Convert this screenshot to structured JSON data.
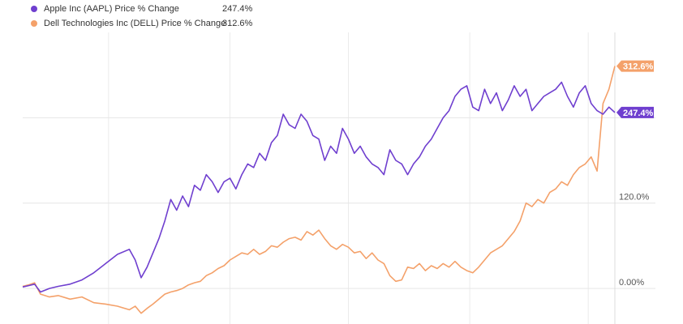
{
  "legend": {
    "aapl": {
      "label": "Apple Inc (AAPL) Price % Change",
      "value": "247.4%",
      "color": "#6f3fcf"
    },
    "dell": {
      "label": "Dell Technologies Inc (DELL) Price % Change",
      "value": "312.6%",
      "color": "#f4a16a"
    }
  },
  "chart_data": {
    "type": "line",
    "title": "",
    "xlabel": "",
    "ylabel": "",
    "ylim": [
      -50,
      360
    ],
    "yticks": [
      {
        "value": 0,
        "label": "0.00%"
      },
      {
        "value": 120,
        "label": "120.0%"
      }
    ],
    "grid": true,
    "end_labels": {
      "aapl": "247.4%",
      "dell": "312.6%"
    },
    "series": [
      {
        "name": "Apple Inc (AAPL) Price % Change",
        "key": "aapl",
        "color": "#6f3fcf",
        "x": [
          0,
          0.01,
          0.02,
          0.03,
          0.045,
          0.06,
          0.08,
          0.1,
          0.12,
          0.14,
          0.16,
          0.18,
          0.19,
          0.2,
          0.21,
          0.22,
          0.23,
          0.24,
          0.25,
          0.26,
          0.27,
          0.28,
          0.29,
          0.3,
          0.31,
          0.32,
          0.33,
          0.34,
          0.35,
          0.36,
          0.37,
          0.38,
          0.39,
          0.4,
          0.41,
          0.42,
          0.43,
          0.44,
          0.45,
          0.46,
          0.47,
          0.48,
          0.49,
          0.5,
          0.51,
          0.52,
          0.53,
          0.54,
          0.55,
          0.56,
          0.57,
          0.58,
          0.59,
          0.6,
          0.61,
          0.62,
          0.63,
          0.64,
          0.65,
          0.66,
          0.67,
          0.68,
          0.69,
          0.7,
          0.71,
          0.72,
          0.73,
          0.74,
          0.75,
          0.76,
          0.77,
          0.78,
          0.79,
          0.8,
          0.81,
          0.82,
          0.83,
          0.84,
          0.85,
          0.86,
          0.87,
          0.88,
          0.89,
          0.9,
          0.91,
          0.92,
          0.93,
          0.94,
          0.95,
          0.96,
          0.97,
          0.98,
          0.99,
          1.0
        ],
        "values": [
          2,
          4,
          6,
          -5,
          0,
          3,
          6,
          12,
          22,
          35,
          48,
          55,
          40,
          15,
          30,
          50,
          70,
          95,
          125,
          110,
          130,
          115,
          145,
          138,
          160,
          150,
          135,
          150,
          155,
          140,
          160,
          175,
          170,
          190,
          180,
          205,
          215,
          245,
          230,
          225,
          245,
          235,
          215,
          210,
          180,
          200,
          190,
          225,
          210,
          190,
          200,
          185,
          175,
          170,
          160,
          195,
          180,
          175,
          160,
          175,
          185,
          200,
          210,
          225,
          240,
          250,
          270,
          280,
          285,
          255,
          250,
          280,
          260,
          275,
          250,
          265,
          285,
          270,
          280,
          250,
          260,
          270,
          275,
          280,
          290,
          270,
          255,
          275,
          285,
          260,
          250,
          245,
          255,
          247.4
        ]
      },
      {
        "name": "Dell Technologies Inc (DELL) Price % Change",
        "key": "dell",
        "color": "#f4a16a",
        "x": [
          0,
          0.01,
          0.02,
          0.03,
          0.045,
          0.06,
          0.08,
          0.1,
          0.12,
          0.14,
          0.16,
          0.18,
          0.19,
          0.2,
          0.21,
          0.22,
          0.23,
          0.24,
          0.25,
          0.26,
          0.27,
          0.28,
          0.29,
          0.3,
          0.31,
          0.32,
          0.33,
          0.34,
          0.35,
          0.36,
          0.37,
          0.38,
          0.39,
          0.4,
          0.41,
          0.42,
          0.43,
          0.44,
          0.45,
          0.46,
          0.47,
          0.48,
          0.49,
          0.5,
          0.51,
          0.52,
          0.53,
          0.54,
          0.55,
          0.56,
          0.57,
          0.58,
          0.59,
          0.6,
          0.61,
          0.62,
          0.63,
          0.64,
          0.65,
          0.66,
          0.67,
          0.68,
          0.69,
          0.7,
          0.71,
          0.72,
          0.73,
          0.74,
          0.75,
          0.76,
          0.77,
          0.78,
          0.79,
          0.8,
          0.81,
          0.82,
          0.83,
          0.84,
          0.85,
          0.86,
          0.87,
          0.88,
          0.89,
          0.9,
          0.91,
          0.92,
          0.93,
          0.94,
          0.95,
          0.96,
          0.97,
          0.98,
          0.99,
          1.0
        ],
        "values": [
          3,
          5,
          8,
          -8,
          -12,
          -10,
          -15,
          -12,
          -20,
          -22,
          -25,
          -30,
          -25,
          -35,
          -28,
          -22,
          -15,
          -8,
          -5,
          -3,
          0,
          5,
          8,
          10,
          18,
          22,
          28,
          32,
          40,
          45,
          50,
          48,
          55,
          48,
          52,
          60,
          58,
          65,
          70,
          72,
          68,
          80,
          75,
          82,
          70,
          60,
          55,
          62,
          58,
          50,
          52,
          42,
          50,
          40,
          35,
          18,
          10,
          12,
          30,
          28,
          35,
          25,
          32,
          28,
          35,
          30,
          38,
          30,
          25,
          22,
          30,
          40,
          50,
          55,
          60,
          70,
          80,
          95,
          120,
          115,
          125,
          120,
          135,
          140,
          150,
          145,
          160,
          170,
          175,
          185,
          165,
          260,
          280,
          312.6
        ]
      }
    ]
  }
}
